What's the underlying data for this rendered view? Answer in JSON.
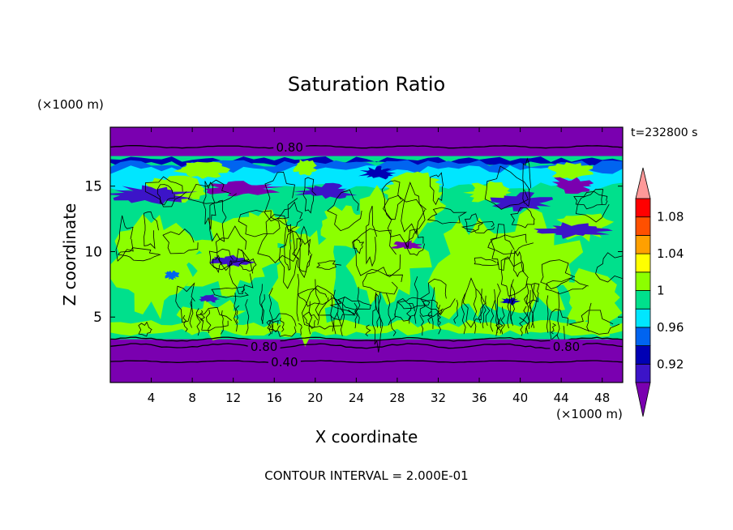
{
  "chart_data": {
    "type": "heatmap",
    "title": "Saturation Ratio",
    "xlabel": "X coordinate",
    "ylabel": "Z coordinate",
    "x_unit": "(×1000 m)",
    "y_unit": "(×1000 m)",
    "time_label": "t=232800 s",
    "footer": "CONTOUR INTERVAL = 2.000E-01",
    "xlim": [
      0,
      50
    ],
    "ylim": [
      0,
      19.5
    ],
    "x_ticks": [
      4,
      8,
      12,
      16,
      20,
      24,
      28,
      32,
      36,
      40,
      44,
      48
    ],
    "y_ticks": [
      5,
      10,
      15
    ],
    "contour_labels": [
      {
        "text": "0.80",
        "x": 17.5,
        "z": 18.0
      },
      {
        "text": "0.80",
        "x": 15.0,
        "z": 2.8
      },
      {
        "text": "0.80",
        "x": 44.5,
        "z": 2.8
      },
      {
        "text": "0.40",
        "x": 17.0,
        "z": 1.6
      }
    ],
    "colorbar": {
      "levels": [
        0.9,
        0.92,
        0.94,
        0.96,
        0.98,
        1.0,
        1.02,
        1.04,
        1.06,
        1.08,
        1.1
      ],
      "tick_labels": [
        "0.92",
        "0.96",
        "1",
        "1.04",
        "1.08"
      ],
      "colors": [
        "#7a00b0",
        "#3c14c8",
        "#0000b4",
        "#0064f0",
        "#00e6ff",
        "#00e08c",
        "#8cff00",
        "#ffff00",
        "#ffa000",
        "#ff5000",
        "#ff0000"
      ],
      "under_color": "#7a00b0",
      "over_color": "#ff9999"
    }
  }
}
